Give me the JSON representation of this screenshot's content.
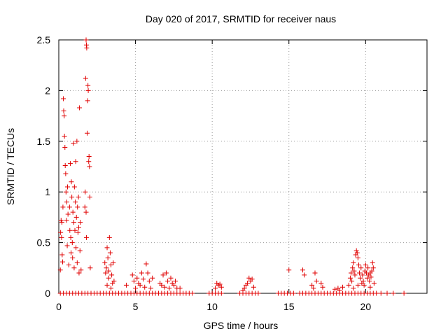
{
  "chart_data": {
    "type": "scatter",
    "title": "Day 020 of 2017, SRMTID for receiver naus",
    "xlabel": "GPS time / hours",
    "ylabel": "SRMTID / TECUs",
    "xlim": [
      0,
      24
    ],
    "ylim": [
      0,
      2.5
    ],
    "xticks": [
      0,
      5,
      10,
      15,
      20
    ],
    "xtick_labels": [
      "0",
      "5",
      "10",
      "15",
      "20"
    ],
    "yticks": [
      0,
      0.5,
      1,
      1.5,
      2,
      2.5
    ],
    "ytick_labels": [
      "0",
      "0.5",
      "1",
      "1.5",
      "2",
      "2.5"
    ],
    "grid": true,
    "marker": "plus",
    "series": [
      {
        "color": "#e00000",
        "points": [
          [
            0.1,
            0.23
          ],
          [
            0.12,
            0.6
          ],
          [
            0.15,
            0.72
          ],
          [
            0.18,
            0.55
          ],
          [
            0.2,
            0.7
          ],
          [
            0.22,
            0.38
          ],
          [
            0.25,
            0.31
          ],
          [
            0.27,
            0.85
          ],
          [
            0.3,
            1.92
          ],
          [
            0.32,
            1.8
          ],
          [
            0.35,
            1.75
          ],
          [
            0.37,
            1.55
          ],
          [
            0.4,
            1.44
          ],
          [
            0.42,
            1.26
          ],
          [
            0.45,
            1.18
          ],
          [
            0.47,
            1.0
          ],
          [
            0.5,
            0.72
          ],
          [
            0.52,
            0.9
          ],
          [
            0.55,
            0.47
          ],
          [
            0.57,
            1.05
          ],
          [
            0.6,
            0.78
          ],
          [
            0.65,
            0.28
          ],
          [
            0.7,
            0.85
          ],
          [
            0.72,
            0.62
          ],
          [
            0.75,
            1.28
          ],
          [
            0.78,
            0.55
          ],
          [
            0.8,
            0.4
          ],
          [
            0.82,
            1.1
          ],
          [
            0.85,
            0.95
          ],
          [
            0.88,
            0.5
          ],
          [
            0.9,
            0.35
          ],
          [
            0.92,
            0.8
          ],
          [
            0.95,
            1.48
          ],
          [
            0.98,
            0.7
          ],
          [
            1.0,
            0.25
          ],
          [
            1.02,
            1.05
          ],
          [
            1.05,
            0.62
          ],
          [
            1.08,
            0.9
          ],
          [
            1.1,
            1.3
          ],
          [
            1.12,
            0.45
          ],
          [
            1.15,
            0.75
          ],
          [
            1.18,
            1.5
          ],
          [
            1.2,
            0.3
          ],
          [
            1.22,
            0.85
          ],
          [
            1.25,
            0.6
          ],
          [
            1.28,
            0.95
          ],
          [
            1.3,
            0.65
          ],
          [
            1.32,
            0.2
          ],
          [
            1.35,
            1.83
          ],
          [
            1.38,
            0.42
          ],
          [
            1.4,
            0.7
          ],
          [
            1.45,
            0.23
          ],
          [
            1.7,
            0.85
          ],
          [
            1.72,
            1.0
          ],
          [
            1.75,
            2.12
          ],
          [
            1.78,
            2.5
          ],
          [
            1.8,
            2.45
          ],
          [
            1.82,
            2.42
          ],
          [
            1.85,
            1.58
          ],
          [
            1.88,
            1.9
          ],
          [
            1.9,
            2.05
          ],
          [
            1.92,
            2.0
          ],
          [
            1.95,
            1.3
          ],
          [
            1.97,
            1.35
          ],
          [
            2.0,
            1.25
          ],
          [
            2.02,
            0.95
          ],
          [
            2.05,
            0.25
          ],
          [
            1.78,
            0.8
          ],
          [
            1.8,
            0.55
          ],
          [
            3.0,
            0.3
          ],
          [
            3.05,
            0.2
          ],
          [
            3.1,
            0.25
          ],
          [
            3.15,
            0.45
          ],
          [
            3.2,
            0.35
          ],
          [
            3.25,
            0.15
          ],
          [
            3.3,
            0.55
          ],
          [
            3.35,
            0.4
          ],
          [
            3.4,
            0.28
          ],
          [
            3.45,
            0.18
          ],
          [
            3.5,
            0.1
          ],
          [
            3.55,
            0.3
          ],
          [
            3.6,
            0.12
          ],
          [
            3.15,
            0.08
          ],
          [
            3.25,
            0.22
          ],
          [
            3.4,
            0.05
          ],
          [
            4.4,
            0.08
          ],
          [
            4.8,
            0.18
          ],
          [
            4.9,
            0.12
          ],
          [
            5.0,
            0.05
          ],
          [
            5.1,
            0.15
          ],
          [
            5.2,
            0.1
          ],
          [
            5.3,
            0.08
          ],
          [
            5.4,
            0.2
          ],
          [
            5.5,
            0.14
          ],
          [
            5.6,
            0.06
          ],
          [
            5.7,
            0.29
          ],
          [
            5.8,
            0.2
          ],
          [
            5.9,
            0.12
          ],
          [
            6.0,
            0.05
          ],
          [
            6.1,
            0.15
          ],
          [
            6.6,
            0.1
          ],
          [
            6.7,
            0.08
          ],
          [
            6.8,
            0.18
          ],
          [
            6.9,
            0.06
          ],
          [
            7.0,
            0.2
          ],
          [
            7.1,
            0.12
          ],
          [
            7.2,
            0.05
          ],
          [
            7.3,
            0.15
          ],
          [
            7.4,
            0.1
          ],
          [
            7.5,
            0.08
          ],
          [
            7.6,
            0.12
          ],
          [
            7.7,
            0.05
          ],
          [
            7.9,
            0.05
          ],
          [
            10.2,
            0.05
          ],
          [
            10.3,
            0.1
          ],
          [
            10.4,
            0.08
          ],
          [
            10.5,
            0.09
          ],
          [
            10.6,
            0.06
          ],
          [
            12.0,
            0.03
          ],
          [
            12.1,
            0.05
          ],
          [
            12.2,
            0.08
          ],
          [
            12.3,
            0.1
          ],
          [
            12.4,
            0.15
          ],
          [
            12.5,
            0.12
          ],
          [
            12.6,
            0.14
          ],
          [
            12.7,
            0.06
          ],
          [
            15.0,
            0.23
          ],
          [
            15.9,
            0.23
          ],
          [
            16.0,
            0.18
          ],
          [
            16.5,
            0.08
          ],
          [
            16.6,
            0.05
          ],
          [
            16.7,
            0.2
          ],
          [
            16.8,
            0.12
          ],
          [
            17.1,
            0.1
          ],
          [
            17.2,
            0.06
          ],
          [
            18.0,
            0.04
          ],
          [
            18.2,
            0.05
          ],
          [
            18.3,
            0.03
          ],
          [
            18.5,
            0.06
          ],
          [
            18.9,
            0.08
          ],
          [
            19.0,
            0.15
          ],
          [
            19.05,
            0.2
          ],
          [
            19.1,
            0.12
          ],
          [
            19.15,
            0.25
          ],
          [
            19.2,
            0.3
          ],
          [
            19.25,
            0.22
          ],
          [
            19.3,
            0.18
          ],
          [
            19.35,
            0.38
          ],
          [
            19.4,
            0.42
          ],
          [
            19.45,
            0.4
          ],
          [
            19.5,
            0.35
          ],
          [
            19.55,
            0.28
          ],
          [
            19.6,
            0.2
          ],
          [
            19.65,
            0.15
          ],
          [
            19.7,
            0.25
          ],
          [
            19.75,
            0.1
          ],
          [
            19.8,
            0.18
          ],
          [
            19.85,
            0.12
          ],
          [
            19.9,
            0.08
          ],
          [
            19.95,
            0.22
          ],
          [
            20.0,
            0.28
          ],
          [
            20.05,
            0.2
          ],
          [
            20.1,
            0.15
          ],
          [
            20.15,
            0.25
          ],
          [
            20.2,
            0.18
          ],
          [
            20.25,
            0.12
          ],
          [
            20.3,
            0.2
          ],
          [
            20.35,
            0.16
          ],
          [
            20.4,
            0.22
          ],
          [
            20.45,
            0.3
          ],
          [
            20.5,
            0.25
          ],
          [
            20.55,
            0.1
          ],
          [
            19.2,
            0.05
          ],
          [
            19.5,
            0.08
          ],
          [
            20.3,
            0.06
          ],
          [
            0.1,
            0.0
          ],
          [
            0.3,
            0.0
          ],
          [
            0.5,
            0.0
          ],
          [
            0.7,
            0.0
          ],
          [
            0.9,
            0.0
          ],
          [
            1.1,
            0.0
          ],
          [
            1.3,
            0.0
          ],
          [
            1.5,
            0.0
          ],
          [
            1.7,
            0.0
          ],
          [
            1.9,
            0.0
          ],
          [
            2.1,
            0.0
          ],
          [
            2.3,
            0.0
          ],
          [
            2.5,
            0.0
          ],
          [
            2.7,
            0.0
          ],
          [
            2.9,
            0.0
          ],
          [
            3.1,
            0.0
          ],
          [
            3.3,
            0.0
          ],
          [
            3.5,
            0.0
          ],
          [
            3.7,
            0.0
          ],
          [
            3.9,
            0.0
          ],
          [
            4.1,
            0.0
          ],
          [
            4.3,
            0.0
          ],
          [
            4.5,
            0.0
          ],
          [
            4.7,
            0.0
          ],
          [
            4.9,
            0.0
          ],
          [
            5.1,
            0.0
          ],
          [
            5.3,
            0.0
          ],
          [
            5.5,
            0.0
          ],
          [
            5.7,
            0.0
          ],
          [
            5.9,
            0.0
          ],
          [
            6.1,
            0.0
          ],
          [
            6.3,
            0.0
          ],
          [
            6.5,
            0.0
          ],
          [
            6.7,
            0.0
          ],
          [
            6.9,
            0.0
          ],
          [
            7.1,
            0.0
          ],
          [
            7.3,
            0.0
          ],
          [
            7.5,
            0.0
          ],
          [
            7.7,
            0.0
          ],
          [
            7.9,
            0.0
          ],
          [
            8.1,
            0.0
          ],
          [
            8.3,
            0.0
          ],
          [
            8.5,
            0.0
          ],
          [
            8.7,
            0.0
          ],
          [
            9.8,
            0.0
          ],
          [
            10.0,
            0.0
          ],
          [
            10.2,
            0.0
          ],
          [
            10.4,
            0.0
          ],
          [
            10.6,
            0.0
          ],
          [
            11.8,
            0.0
          ],
          [
            12.0,
            0.0
          ],
          [
            12.2,
            0.0
          ],
          [
            12.4,
            0.0
          ],
          [
            12.6,
            0.0
          ],
          [
            12.8,
            0.0
          ],
          [
            13.0,
            0.0
          ],
          [
            14.3,
            0.0
          ],
          [
            14.5,
            0.0
          ],
          [
            14.7,
            0.0
          ],
          [
            14.9,
            0.0
          ],
          [
            15.1,
            0.0
          ],
          [
            15.3,
            0.0
          ],
          [
            15.7,
            0.0
          ],
          [
            15.9,
            0.0
          ],
          [
            16.1,
            0.0
          ],
          [
            16.3,
            0.0
          ],
          [
            16.5,
            0.0
          ],
          [
            16.7,
            0.0
          ],
          [
            16.9,
            0.0
          ],
          [
            17.1,
            0.0
          ],
          [
            17.3,
            0.0
          ],
          [
            17.5,
            0.0
          ],
          [
            17.7,
            0.0
          ],
          [
            17.9,
            0.0
          ],
          [
            18.1,
            0.0
          ],
          [
            18.3,
            0.0
          ],
          [
            18.5,
            0.0
          ],
          [
            18.7,
            0.0
          ],
          [
            18.9,
            0.0
          ],
          [
            19.1,
            0.0
          ],
          [
            19.3,
            0.0
          ],
          [
            19.5,
            0.0
          ],
          [
            19.7,
            0.0
          ],
          [
            19.9,
            0.0
          ],
          [
            20.1,
            0.0
          ],
          [
            20.3,
            0.0
          ],
          [
            20.5,
            0.0
          ],
          [
            20.7,
            0.0
          ],
          [
            21.0,
            0.0
          ],
          [
            21.4,
            0.0
          ],
          [
            21.8,
            0.0
          ],
          [
            22.5,
            0.0
          ]
        ]
      }
    ]
  }
}
